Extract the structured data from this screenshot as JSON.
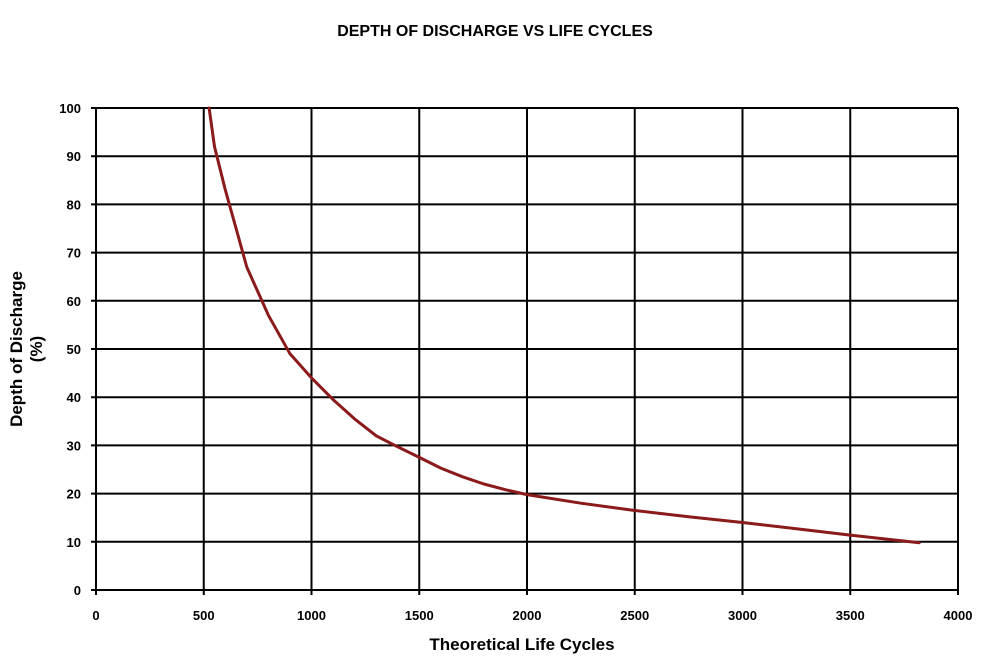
{
  "chart_data": {
    "type": "line",
    "title": "DEPTH OF DISCHARGE VS LIFE CYCLES",
    "xlabel": "Theoretical Life Cycles",
    "ylabel": "Depth of Discharge",
    "ylabel_unit": "(%)",
    "xlim": [
      0,
      4000
    ],
    "ylim": [
      0,
      100
    ],
    "x_ticks": [
      "0",
      "500",
      "1000",
      "1500",
      "2000",
      "2500",
      "3000",
      "3500",
      "4000"
    ],
    "y_ticks": [
      "0",
      "10",
      "20",
      "30",
      "40",
      "50",
      "60",
      "70",
      "80",
      "90",
      "100"
    ],
    "grid": true,
    "line_color": "#8B1A1A",
    "series": [
      {
        "x": [
          525,
          550,
          600,
          650,
          700,
          800,
          900,
          1000,
          1100,
          1200,
          1300,
          1400,
          1500,
          1600,
          1700,
          1800,
          1900,
          2000,
          2250,
          2500,
          2750,
          3000,
          3250,
          3500,
          3700,
          3820
        ],
        "y": [
          100,
          92,
          83,
          75,
          67,
          57,
          49,
          44,
          39.5,
          35.5,
          32,
          29.7,
          27.5,
          25.3,
          23.5,
          22,
          20.8,
          19.8,
          18,
          16.5,
          15.2,
          14,
          12.7,
          11.4,
          10.4,
          9.8
        ]
      }
    ]
  }
}
